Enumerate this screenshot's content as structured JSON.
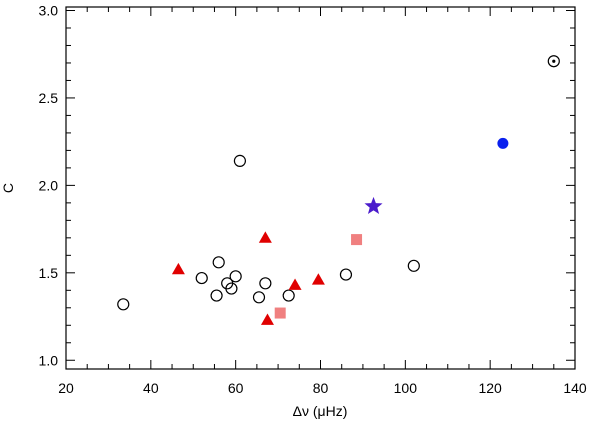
{
  "chart_data": {
    "type": "scatter",
    "title": "",
    "xlabel": "Δν (μHz)",
    "ylabel": "C",
    "xlim": [
      20,
      140
    ],
    "ylim": [
      0.95,
      3.02
    ],
    "x_major_ticks": [
      20,
      40,
      60,
      80,
      100,
      120,
      140
    ],
    "x_tick_labels": [
      "20",
      "40",
      "60",
      "80",
      "100",
      "120",
      "140"
    ],
    "x_minor_step": 5,
    "y_major_ticks": [
      1.0,
      1.5,
      2.0,
      2.5,
      3.0
    ],
    "y_tick_labels": [
      "1.0",
      "1.5",
      "2.0",
      "2.5",
      "3.0"
    ],
    "y_minor_step": 0.1,
    "grid": false,
    "series": [
      {
        "name": "open circles",
        "marker": "open-circle",
        "color": "#000000",
        "points": [
          {
            "x": 33.5,
            "y": 1.32
          },
          {
            "x": 52.0,
            "y": 1.47
          },
          {
            "x": 55.5,
            "y": 1.37
          },
          {
            "x": 56.0,
            "y": 1.56
          },
          {
            "x": 58.0,
            "y": 1.44
          },
          {
            "x": 59.0,
            "y": 1.41
          },
          {
            "x": 60.0,
            "y": 1.48
          },
          {
            "x": 61.0,
            "y": 2.14
          },
          {
            "x": 65.5,
            "y": 1.36
          },
          {
            "x": 67.0,
            "y": 1.44
          },
          {
            "x": 72.5,
            "y": 1.37
          },
          {
            "x": 86.0,
            "y": 1.49
          },
          {
            "x": 102.0,
            "y": 1.54
          }
        ]
      },
      {
        "name": "red triangles",
        "marker": "triangle",
        "color": "#e00000",
        "points": [
          {
            "x": 46.5,
            "y": 1.52
          },
          {
            "x": 67.0,
            "y": 1.7
          },
          {
            "x": 67.5,
            "y": 1.23
          },
          {
            "x": 74.0,
            "y": 1.43
          },
          {
            "x": 79.5,
            "y": 1.46
          }
        ]
      },
      {
        "name": "pink squares",
        "marker": "square",
        "color": "#f08080",
        "points": [
          {
            "x": 70.5,
            "y": 1.27
          },
          {
            "x": 88.5,
            "y": 1.69
          }
        ]
      },
      {
        "name": "star",
        "marker": "star",
        "color": "#4b1ccc",
        "points": [
          {
            "x": 92.5,
            "y": 1.88
          }
        ]
      },
      {
        "name": "blue dot",
        "marker": "filled-circle",
        "color": "#0a20ee",
        "points": [
          {
            "x": 123.0,
            "y": 2.24
          }
        ]
      },
      {
        "name": "sun",
        "marker": "sun-symbol",
        "color": "#000000",
        "points": [
          {
            "x": 135.0,
            "y": 2.71
          }
        ]
      }
    ]
  }
}
